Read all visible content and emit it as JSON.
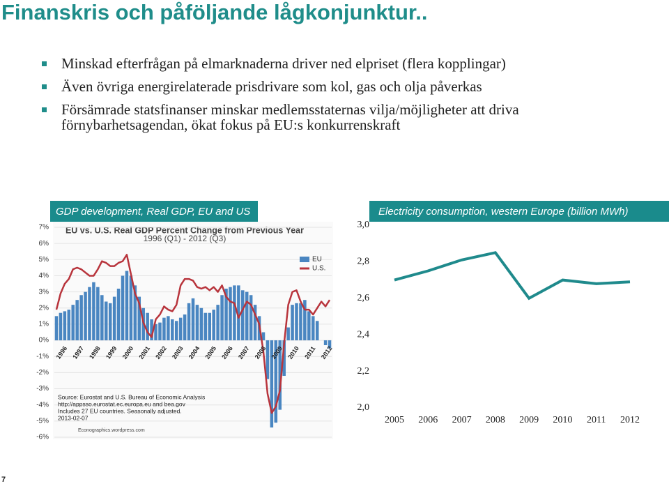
{
  "header": {
    "title": "Finanskris och påföljande lågkonjunktur.."
  },
  "bullets": [
    "Minskad efterfrågan på elmarknaderna driver ned elpriset (flera kopplingar)",
    "Även övriga energirelaterade prisdrivare som kol, gas och olja påverkas",
    "Försämrade statsfinanser minskar medlemsstaternas vilja/möjligheter att driva förnybarhetsagendan, ökat fokus på EU:s konkurrenskraft"
  ],
  "page_number": "7",
  "chart_data": [
    {
      "type": "bar-line",
      "heading": "GDP development, Real GDP, EU and US",
      "title": "EU vs. U.S. Real GDP Percent Change from Previous Year",
      "subtitle": "1996 (Q1) - 2012 (Q3)",
      "categories": [
        "1996",
        null,
        null,
        null,
        "1997",
        null,
        null,
        null,
        "1998",
        null,
        null,
        null,
        "1999",
        null,
        null,
        null,
        "2000",
        null,
        null,
        null,
        "2001",
        null,
        null,
        null,
        "2002",
        null,
        null,
        null,
        "2003",
        null,
        null,
        null,
        "2004",
        null,
        null,
        null,
        "2005",
        null,
        null,
        null,
        "2006",
        null,
        null,
        null,
        "2007",
        null,
        null,
        null,
        "2008",
        null,
        null,
        null,
        "2009",
        null,
        null,
        null,
        "2010",
        null,
        null,
        null,
        "2011",
        null,
        null,
        null,
        "2012",
        null,
        null
      ],
      "series": [
        {
          "name": "EU",
          "kind": "bar",
          "color": "#4a86c1",
          "values": [
            1.5,
            1.7,
            1.8,
            1.9,
            2.2,
            2.5,
            2.8,
            3.0,
            3.3,
            3.6,
            3.3,
            2.8,
            2.4,
            2.3,
            2.7,
            3.2,
            4.0,
            4.3,
            4.0,
            3.4,
            2.7,
            2.0,
            1.7,
            1.3,
            1.0,
            1.1,
            1.4,
            1.5,
            1.3,
            1.2,
            1.4,
            1.6,
            2.3,
            2.6,
            2.2,
            2.0,
            1.7,
            1.7,
            1.9,
            2.2,
            2.8,
            3.2,
            3.3,
            3.4,
            3.4,
            3.1,
            3.0,
            2.8,
            2.2,
            1.5,
            0.5,
            -2.4,
            -5.4,
            -5.1,
            -4.3,
            -2.2,
            0.8,
            2.2,
            2.3,
            2.3,
            2.5,
            1.8,
            1.5,
            1.2,
            0.0,
            -0.3,
            -0.5
          ]
        },
        {
          "name": "U.S.",
          "kind": "line",
          "color": "#b8343c",
          "values": [
            1.9,
            2.9,
            3.5,
            3.8,
            4.4,
            4.5,
            4.4,
            4.2,
            4.0,
            4.0,
            4.4,
            4.9,
            4.8,
            4.6,
            4.6,
            4.8,
            4.9,
            5.3,
            4.1,
            2.9,
            2.3,
            1.1,
            0.5,
            0.2,
            1.3,
            1.6,
            2.1,
            1.9,
            1.8,
            2.2,
            3.4,
            3.8,
            3.8,
            3.7,
            3.3,
            3.2,
            3.3,
            3.1,
            3.3,
            3.0,
            3.4,
            2.7,
            2.4,
            2.3,
            1.4,
            1.9,
            2.4,
            2.2,
            1.6,
            1.0,
            -0.7,
            -3.3,
            -4.5,
            -4.1,
            -3.1,
            -0.2,
            2.2,
            3.0,
            3.1,
            2.4,
            1.9,
            1.9,
            1.6,
            2.0,
            2.4,
            2.1,
            2.5
          ]
        }
      ],
      "ylim": [
        -6,
        7
      ],
      "yticks": [
        {
          "value": -6,
          "label": "-6%"
        },
        {
          "value": -5,
          "label": "-5%"
        },
        {
          "value": -4,
          "label": "-4%"
        },
        {
          "value": -3,
          "label": "-3%"
        },
        {
          "value": -2,
          "label": "-2%"
        },
        {
          "value": -1,
          "label": "-1%"
        },
        {
          "value": 0,
          "label": "0%"
        },
        {
          "value": 1,
          "label": "1%"
        },
        {
          "value": 2,
          "label": "2%"
        },
        {
          "value": 3,
          "label": "3%"
        },
        {
          "value": 4,
          "label": "4%"
        },
        {
          "value": 5,
          "label": "5%"
        },
        {
          "value": 6,
          "label": "6%"
        },
        {
          "value": 7,
          "label": "7%"
        }
      ],
      "grid": true,
      "annotations": [
        "Source: Eurostat and U.S. Bureau of Economic Analysis",
        "http://appsso.eurostat.ec.europa.eu and bea.gov",
        "Includes 27 EU countries. Seasonally adjusted.",
        "2013-02-07"
      ],
      "credit": "Econographics.wordpress.com"
    },
    {
      "type": "line",
      "heading": "Electricity consumption, western Europe (billion MWh)",
      "categories": [
        "2005",
        "2006",
        "2007",
        "2008",
        "2009",
        "2010",
        "2011",
        "2012"
      ],
      "values": [
        2.7,
        2.75,
        2.81,
        2.85,
        2.6,
        2.7,
        2.68,
        2.69
      ],
      "color": "#1f8a8c",
      "ylim": [
        2.0,
        3.0
      ],
      "yticks": [
        {
          "value": 2.0,
          "label": "2,0"
        },
        {
          "value": 2.2,
          "label": "2,2"
        },
        {
          "value": 2.4,
          "label": "2,4"
        },
        {
          "value": 2.6,
          "label": "2,6"
        },
        {
          "value": 2.8,
          "label": "2,8"
        },
        {
          "value": 3.0,
          "label": "3,0"
        }
      ]
    }
  ]
}
